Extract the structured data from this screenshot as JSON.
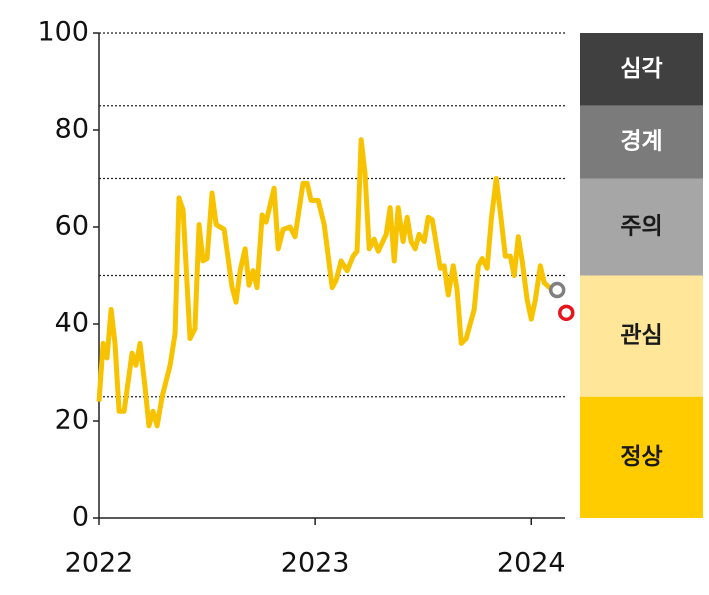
{
  "chart_data": {
    "type": "line",
    "x": [
      2022.0,
      2022.019,
      2022.037,
      2022.056,
      2022.074,
      2022.093,
      2022.116,
      2022.153,
      2022.171,
      2022.19,
      2022.213,
      2022.231,
      2022.25,
      2022.269,
      2022.292,
      2022.329,
      2022.352,
      2022.37,
      2022.389,
      2022.421,
      2022.444,
      2022.463,
      2022.481,
      2022.5,
      2022.523,
      2022.542,
      2022.579,
      2022.616,
      2022.634,
      2022.653,
      2022.676,
      2022.694,
      2022.713,
      2022.731,
      2022.755,
      2022.773,
      2022.81,
      2022.829,
      2022.852,
      2022.884,
      2022.907,
      2022.944,
      2022.963,
      2022.981,
      2023.014,
      2023.042,
      2023.079,
      2023.097,
      2023.12,
      2023.148,
      2023.176,
      2023.194,
      2023.213,
      2023.231,
      2023.25,
      2023.273,
      2023.292,
      2023.329,
      2023.347,
      2023.366,
      2023.384,
      2023.407,
      2023.426,
      2023.444,
      2023.463,
      2023.481,
      2023.505,
      2023.523,
      2023.542,
      2023.579,
      2023.597,
      2023.616,
      2023.639,
      2023.657,
      2023.676,
      2023.699,
      2023.736,
      2023.755,
      2023.773,
      2023.796,
      2023.815,
      2023.838,
      2023.861,
      2023.88,
      2023.903,
      2023.921,
      2023.94,
      2023.958,
      2023.981,
      2024.0,
      2024.019,
      2024.042,
      2024.06,
      2024.097,
      2024.12
    ],
    "series": [
      {
        "color": "#f7c300",
        "values": [
          24,
          36,
          33,
          43,
          36,
          22,
          22,
          34,
          31.5,
          36,
          27,
          19,
          22,
          19,
          25,
          31.5,
          38,
          66,
          63.5,
          37,
          39,
          60.5,
          53,
          53.5,
          67,
          60.5,
          59.5,
          47.5,
          44.5,
          51,
          55.5,
          48,
          51,
          47.5,
          62.5,
          61,
          68,
          55.5,
          59.5,
          60,
          58,
          69,
          69,
          65.5,
          65.5,
          60.5,
          47.5,
          49,
          53,
          51,
          54,
          55,
          78,
          71,
          55.5,
          57.5,
          55,
          58.5,
          64,
          53,
          64,
          57,
          62,
          57,
          55.5,
          58.5,
          57,
          62,
          61.5,
          51.5,
          52,
          46,
          52,
          47,
          36,
          37,
          43,
          52,
          53.5,
          51.5,
          61.5,
          70,
          61.5,
          54,
          54,
          50,
          58,
          53,
          45,
          41,
          45,
          52,
          48.5,
          47,
          47
        ]
      }
    ],
    "highlights": [
      {
        "x": 2024.12,
        "value": 47,
        "color": "#808080"
      },
      {
        "x": 2024.162,
        "value": 42.3,
        "color": "#e8141c"
      }
    ],
    "zones": [
      {
        "label": "심각",
        "from": 85,
        "to": 100,
        "color": "#404040",
        "text_color": "#ffffff"
      },
      {
        "label": "경계",
        "from": 70,
        "to": 85,
        "color": "#7b7b7b",
        "text_color": "#ffffff"
      },
      {
        "label": "주의",
        "from": 50,
        "to": 70,
        "color": "#a6a6a6",
        "text_color": "#1a1a1a"
      },
      {
        "label": "관심",
        "from": 25,
        "to": 50,
        "color": "#ffe699",
        "text_color": "#1a1a1a"
      },
      {
        "label": "정상",
        "from": 0,
        "to": 25,
        "color": "#ffcc00",
        "text_color": "#1a1a1a"
      }
    ],
    "xlim": [
      2022,
      2024.17
    ],
    "xticks": [
      2022,
      2023,
      2024
    ],
    "ylim": [
      0,
      100
    ],
    "yticks": [
      0,
      20,
      40,
      60,
      80,
      100
    ]
  }
}
